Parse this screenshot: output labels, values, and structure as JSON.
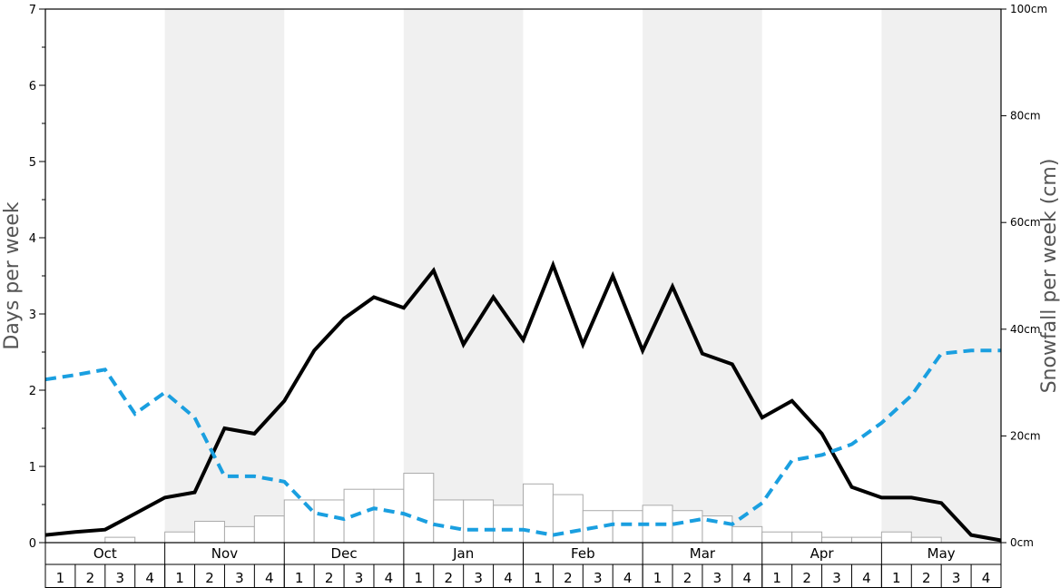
{
  "chart_data": {
    "type": "bar+line",
    "ylabel": "Days per week",
    "y2label": "Snowfall per week (cm)",
    "ylim": [
      0,
      7
    ],
    "y2lim": [
      0,
      100
    ],
    "yticks": [
      "0",
      "1",
      "2",
      "3",
      "4",
      "5",
      "6",
      "7"
    ],
    "y2ticks": [
      "0cm",
      "20cm",
      "40cm",
      "60cm",
      "80cm",
      "100cm"
    ],
    "months": [
      "Oct",
      "Nov",
      "Dec",
      "Jan",
      "Feb",
      "Mar",
      "Apr",
      "May"
    ],
    "week_labels": [
      "1",
      "2",
      "3",
      "4"
    ],
    "snowfall_cm": [
      0,
      0,
      1,
      0,
      2,
      4,
      3,
      5,
      8,
      8,
      10,
      10,
      13,
      8,
      8,
      7,
      11,
      9,
      6,
      6,
      7,
      6,
      5,
      3,
      2,
      2,
      1,
      1,
      2,
      1,
      0,
      0
    ],
    "series": [
      {
        "values": [
          0.1,
          0.14,
          0.17,
          0.38,
          0.59,
          0.66,
          1.5,
          1.43,
          1.86,
          2.52,
          2.94,
          3.22,
          3.08,
          3.57,
          2.6,
          3.22,
          2.66,
          3.64,
          2.6,
          3.5,
          2.52,
          3.36,
          2.48,
          2.34,
          1.64,
          1.86,
          1.43,
          0.73,
          0.59,
          0.59,
          0.52,
          0.1,
          0.03
        ],
        "color": "#000000",
        "style": "solid"
      },
      {
        "values": [
          2.14,
          2.2,
          2.27,
          1.69,
          1.97,
          1.64,
          0.87,
          0.87,
          0.8,
          0.39,
          0.31,
          0.45,
          0.38,
          0.24,
          0.17,
          0.17,
          0.17,
          0.1,
          0.17,
          0.24,
          0.24,
          0.24,
          0.31,
          0.24,
          0.52,
          1.08,
          1.15,
          1.29,
          1.57,
          1.93,
          2.48,
          2.52,
          2.52
        ],
        "color": "#1a9fe0",
        "style": "dashed"
      }
    ],
    "grid": false
  }
}
